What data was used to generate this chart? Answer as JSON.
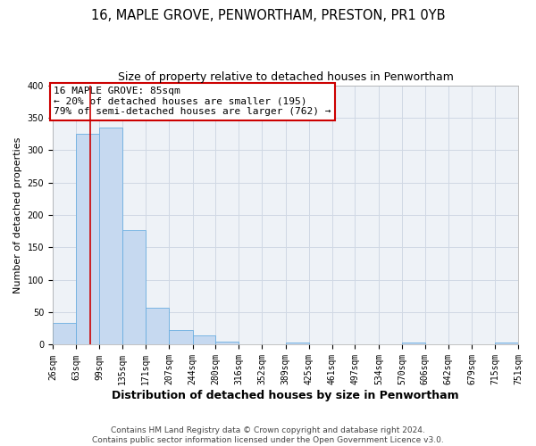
{
  "title": "16, MAPLE GROVE, PENWORTHAM, PRESTON, PR1 0YB",
  "subtitle": "Size of property relative to detached houses in Penwortham",
  "xlabel": "Distribution of detached houses by size in Penwortham",
  "ylabel": "Number of detached properties",
  "bin_edges": [
    26,
    63,
    99,
    135,
    171,
    207,
    244,
    280,
    316,
    352,
    389,
    425,
    461,
    497,
    534,
    570,
    606,
    642,
    679,
    715,
    751
  ],
  "bin_counts": [
    33,
    325,
    335,
    177,
    57,
    23,
    14,
    5,
    1,
    0,
    3,
    0,
    0,
    0,
    0,
    3,
    0,
    0,
    0,
    3
  ],
  "bar_color": "#c6d9f0",
  "bar_edgecolor": "#6aaee0",
  "vline_x": 85,
  "vline_color": "#cc0000",
  "annotation_text": "16 MAPLE GROVE: 85sqm\n← 20% of detached houses are smaller (195)\n79% of semi-detached houses are larger (762) →",
  "annotation_box_edgecolor": "#cc0000",
  "annotation_box_facecolor": "#ffffff",
  "ylim": [
    0,
    400
  ],
  "yticks": [
    0,
    50,
    100,
    150,
    200,
    250,
    300,
    350,
    400
  ],
  "grid_color": "#d0d8e4",
  "background_color": "#eef2f7",
  "footer_line1": "Contains HM Land Registry data © Crown copyright and database right 2024.",
  "footer_line2": "Contains public sector information licensed under the Open Government Licence v3.0.",
  "title_fontsize": 10.5,
  "subtitle_fontsize": 9,
  "xlabel_fontsize": 9,
  "ylabel_fontsize": 8,
  "tick_label_fontsize": 7,
  "annotation_fontsize": 8,
  "footer_fontsize": 6.5
}
